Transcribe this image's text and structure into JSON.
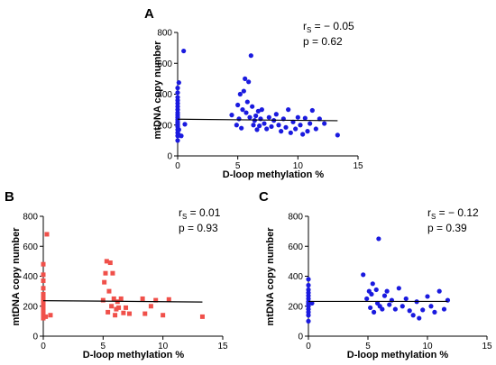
{
  "chart_data": [
    {
      "panel": "A",
      "type": "scatter",
      "xlabel": "D-loop methylation %",
      "ylabel": "mtDNA copy number",
      "xlim": [
        0,
        15
      ],
      "ylim": [
        0,
        800
      ],
      "xticks": [
        0,
        5,
        10,
        15
      ],
      "yticks": [
        0,
        200,
        400,
        600,
        800
      ],
      "stat_r_label": "r",
      "stat_r_sub": "S",
      "stat_r_value": " = − 0.05",
      "stat_p": "p = 0.62",
      "marker": "circle",
      "color": "#1a1adf",
      "regression": {
        "x": [
          0,
          13.3
        ],
        "y": [
          238,
          228
        ]
      },
      "points": [
        [
          0,
          100
        ],
        [
          0,
          130
        ],
        [
          0,
          150
        ],
        [
          0,
          170
        ],
        [
          0,
          190
        ],
        [
          0,
          200
        ],
        [
          0,
          210
        ],
        [
          0,
          220
        ],
        [
          0,
          235
        ],
        [
          0,
          250
        ],
        [
          0,
          265
        ],
        [
          0,
          280
        ],
        [
          0,
          300
        ],
        [
          0,
          320
        ],
        [
          0,
          340
        ],
        [
          0,
          360
        ],
        [
          0,
          380
        ],
        [
          0,
          410
        ],
        [
          0,
          440
        ],
        [
          0.1,
          475
        ],
        [
          0.05,
          140
        ],
        [
          0.1,
          170
        ],
        [
          0.5,
          680
        ],
        [
          0.6,
          205
        ],
        [
          0.3,
          130
        ],
        [
          4.5,
          265
        ],
        [
          4.9,
          200
        ],
        [
          5.0,
          330
        ],
        [
          5.1,
          240
        ],
        [
          5.2,
          400
        ],
        [
          5.3,
          180
        ],
        [
          5.4,
          300
        ],
        [
          5.5,
          420
        ],
        [
          5.6,
          500
        ],
        [
          5.7,
          280
        ],
        [
          5.8,
          350
        ],
        [
          5.9,
          480
        ],
        [
          6.0,
          250
        ],
        [
          6.1,
          650
        ],
        [
          6.2,
          320
        ],
        [
          6.3,
          200
        ],
        [
          6.4,
          230
        ],
        [
          6.5,
          260
        ],
        [
          6.6,
          170
        ],
        [
          6.7,
          290
        ],
        [
          6.8,
          195
        ],
        [
          6.9,
          240
        ],
        [
          7.0,
          300
        ],
        [
          7.2,
          210
        ],
        [
          7.4,
          175
        ],
        [
          7.6,
          250
        ],
        [
          7.8,
          190
        ],
        [
          8.0,
          230
        ],
        [
          8.2,
          270
        ],
        [
          8.4,
          200
        ],
        [
          8.6,
          160
        ],
        [
          8.8,
          240
        ],
        [
          9.0,
          185
        ],
        [
          9.2,
          300
        ],
        [
          9.4,
          150
        ],
        [
          9.6,
          220
        ],
        [
          9.8,
          175
        ],
        [
          10.0,
          250
        ],
        [
          10.2,
          200
        ],
        [
          10.4,
          140
        ],
        [
          10.6,
          245
        ],
        [
          10.8,
          160
        ],
        [
          11.0,
          210
        ],
        [
          11.2,
          295
        ],
        [
          11.5,
          175
        ],
        [
          11.8,
          240
        ],
        [
          12.2,
          210
        ],
        [
          13.3,
          135
        ]
      ]
    },
    {
      "panel": "B",
      "type": "scatter",
      "xlabel": "D-loop methylation %",
      "ylabel": "mtDNA copy number",
      "xlim": [
        0,
        15
      ],
      "ylim": [
        0,
        800
      ],
      "xticks": [
        0,
        5,
        10,
        15
      ],
      "yticks": [
        0,
        200,
        400,
        600,
        800
      ],
      "stat_r_label": "r",
      "stat_r_sub": "S",
      "stat_r_value": " = 0.01",
      "stat_p": "p = 0.93",
      "marker": "square",
      "color": "#f0504a",
      "regression": {
        "x": [
          0,
          13.3
        ],
        "y": [
          237,
          228
        ]
      },
      "points": [
        [
          0,
          120
        ],
        [
          0,
          140
        ],
        [
          0,
          160
        ],
        [
          0,
          180
        ],
        [
          0,
          200
        ],
        [
          0,
          220
        ],
        [
          0,
          240
        ],
        [
          0,
          260
        ],
        [
          0,
          280
        ],
        [
          0,
          320
        ],
        [
          0,
          370
        ],
        [
          0,
          410
        ],
        [
          0,
          480
        ],
        [
          0.2,
          130
        ],
        [
          0.3,
          680
        ],
        [
          0.6,
          140
        ],
        [
          5.0,
          240
        ],
        [
          5.1,
          360
        ],
        [
          5.2,
          420
        ],
        [
          5.3,
          500
        ],
        [
          5.4,
          160
        ],
        [
          5.5,
          300
        ],
        [
          5.6,
          490
        ],
        [
          5.7,
          200
        ],
        [
          5.8,
          420
        ],
        [
          5.9,
          250
        ],
        [
          6.0,
          140
        ],
        [
          6.1,
          180
        ],
        [
          6.2,
          230
        ],
        [
          6.3,
          190
        ],
        [
          6.5,
          250
        ],
        [
          6.7,
          155
        ],
        [
          6.9,
          190
        ],
        [
          7.2,
          150
        ],
        [
          8.3,
          250
        ],
        [
          8.5,
          150
        ],
        [
          9.0,
          200
        ],
        [
          9.4,
          240
        ],
        [
          10.0,
          140
        ],
        [
          10.5,
          245
        ],
        [
          13.3,
          130
        ]
      ]
    },
    {
      "panel": "C",
      "type": "scatter",
      "xlabel": "D-loop methylation %",
      "ylabel": "mtDNA copy number",
      "xlim": [
        0,
        15
      ],
      "ylim": [
        0,
        800
      ],
      "xticks": [
        0,
        5,
        10,
        15
      ],
      "yticks": [
        0,
        200,
        400,
        600,
        800
      ],
      "stat_r_label": "r",
      "stat_r_sub": "S",
      "stat_r_value": " = − 0.12",
      "stat_p": "p = 0.39",
      "marker": "circle",
      "color": "#1a1adf",
      "regression": {
        "x": [
          0,
          11.7
        ],
        "y": [
          232,
          232
        ]
      },
      "points": [
        [
          0,
          100
        ],
        [
          0,
          140
        ],
        [
          0,
          160
        ],
        [
          0,
          180
        ],
        [
          0,
          200
        ],
        [
          0,
          215
        ],
        [
          0,
          230
        ],
        [
          0,
          250
        ],
        [
          0,
          270
        ],
        [
          0,
          290
        ],
        [
          0,
          310
        ],
        [
          0,
          340
        ],
        [
          0,
          380
        ],
        [
          0.3,
          220
        ],
        [
          4.6,
          410
        ],
        [
          4.9,
          250
        ],
        [
          5.1,
          300
        ],
        [
          5.2,
          190
        ],
        [
          5.3,
          280
        ],
        [
          5.4,
          350
        ],
        [
          5.5,
          160
        ],
        [
          5.7,
          310
        ],
        [
          5.8,
          220
        ],
        [
          5.9,
          650
        ],
        [
          6.0,
          200
        ],
        [
          6.2,
          180
        ],
        [
          6.4,
          270
        ],
        [
          6.6,
          300
        ],
        [
          6.8,
          210
        ],
        [
          7.0,
          240
        ],
        [
          7.3,
          180
        ],
        [
          7.6,
          320
        ],
        [
          7.9,
          200
        ],
        [
          8.2,
          250
        ],
        [
          8.5,
          170
        ],
        [
          8.8,
          140
        ],
        [
          9.1,
          230
        ],
        [
          9.3,
          120
        ],
        [
          9.6,
          175
        ],
        [
          10.0,
          265
        ],
        [
          10.3,
          200
        ],
        [
          10.6,
          160
        ],
        [
          11.0,
          300
        ],
        [
          11.4,
          180
        ],
        [
          11.7,
          240
        ]
      ]
    }
  ]
}
